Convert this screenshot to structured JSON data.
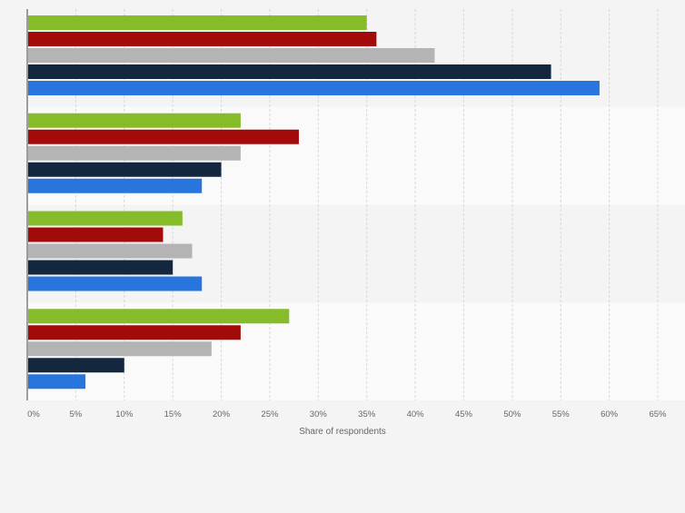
{
  "chart_data": {
    "type": "bar",
    "orientation": "horizontal",
    "categories": [
      "",
      "",
      "",
      ""
    ],
    "series": [
      {
        "color": "#86bb2a",
        "values": [
          35,
          22,
          16,
          27
        ]
      },
      {
        "color": "#a30b0b",
        "values": [
          36,
          28,
          14,
          22
        ]
      },
      {
        "color": "#b4b4b4",
        "values": [
          42,
          22,
          17,
          19
        ]
      },
      {
        "color": "#13273f",
        "values": [
          54,
          20,
          15,
          10
        ]
      },
      {
        "color": "#2876dd",
        "values": [
          59,
          18,
          18,
          6
        ]
      }
    ],
    "xlabel": "Share of respondents",
    "xlim": [
      0,
      65
    ],
    "xticks": [
      "0%",
      "5%",
      "10%",
      "15%",
      "20%",
      "25%",
      "30%",
      "35%",
      "40%",
      "45%",
      "50%",
      "55%",
      "60%",
      "65%"
    ],
    "tick_values": [
      0,
      5,
      10,
      15,
      20,
      25,
      30,
      35,
      40,
      45,
      50,
      55,
      60,
      65
    ],
    "grid": true,
    "legend": "none"
  }
}
